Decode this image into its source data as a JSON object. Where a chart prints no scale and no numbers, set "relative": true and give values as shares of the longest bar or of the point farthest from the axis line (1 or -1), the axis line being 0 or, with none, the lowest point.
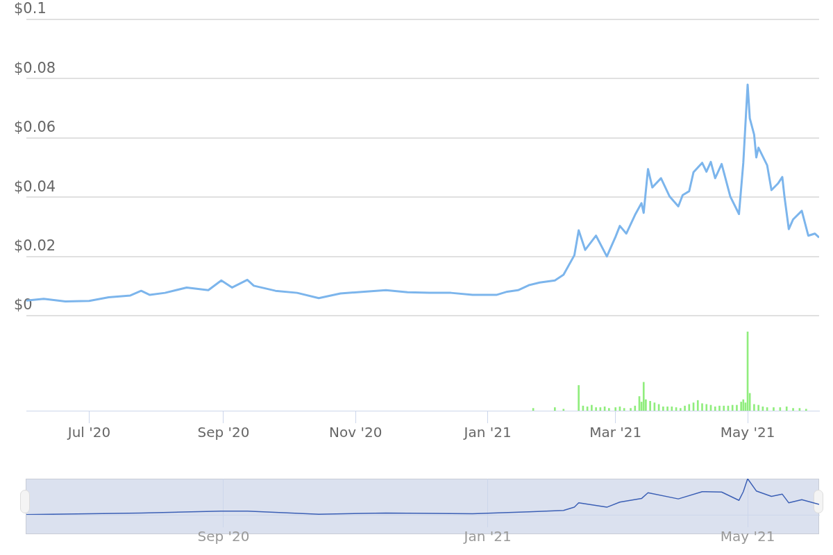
{
  "chart_data": [
    {
      "type": "line",
      "xlim": [
        "2020-06-02",
        "2021-06-03"
      ],
      "ylim": [
        0,
        0.1
      ],
      "yticks": [
        {
          "value": 0,
          "label": "$0"
        },
        {
          "value": 0.02,
          "label": "$0.02"
        },
        {
          "value": 0.04,
          "label": "$0.04"
        },
        {
          "value": 0.06,
          "label": "$0.06"
        },
        {
          "value": 0.08,
          "label": "$0.08"
        },
        {
          "value": 0.1,
          "label": "$0.1"
        }
      ],
      "tick_labels": "y",
      "grid": "y",
      "legend": false,
      "x": [
        "2020-06-02",
        "2020-06-10",
        "2020-06-20",
        "2020-07-01",
        "2020-07-10",
        "2020-07-20",
        "2020-07-25",
        "2020-07-29",
        "2020-08-05",
        "2020-08-15",
        "2020-08-25",
        "2020-08-31",
        "2020-09-05",
        "2020-09-12",
        "2020-09-15",
        "2020-09-25",
        "2020-10-05",
        "2020-10-15",
        "2020-10-25",
        "2020-11-05",
        "2020-11-15",
        "2020-11-25",
        "2020-12-05",
        "2020-12-15",
        "2020-12-25",
        "2021-01-05",
        "2021-01-10",
        "2021-01-15",
        "2021-01-20",
        "2021-01-25",
        "2021-02-01",
        "2021-02-05",
        "2021-02-10",
        "2021-02-12",
        "2021-02-15",
        "2021-02-20",
        "2021-02-25",
        "2021-03-01",
        "2021-03-03",
        "2021-03-06",
        "2021-03-10",
        "2021-03-13",
        "2021-03-14",
        "2021-03-16",
        "2021-03-18",
        "2021-03-22",
        "2021-03-26",
        "2021-03-30",
        "2021-04-01",
        "2021-04-04",
        "2021-04-06",
        "2021-04-10",
        "2021-04-12",
        "2021-04-14",
        "2021-04-16",
        "2021-04-19",
        "2021-04-23",
        "2021-04-27",
        "2021-04-29",
        "2021-05-01",
        "2021-05-02",
        "2021-05-04",
        "2021-05-05",
        "2021-05-06",
        "2021-05-10",
        "2021-05-12",
        "2021-05-15",
        "2021-05-17",
        "2021-05-18",
        "2021-05-20",
        "2021-05-22",
        "2021-05-26",
        "2021-05-29",
        "2021-06-01",
        "2021-06-03"
      ],
      "series": [
        {
          "color": "#7cb5ec",
          "values": [
            0.0051,
            0.0057,
            0.0048,
            0.005,
            0.0062,
            0.0068,
            0.0084,
            0.007,
            0.0077,
            0.0095,
            0.0086,
            0.0119,
            0.0095,
            0.0121,
            0.0101,
            0.0084,
            0.0077,
            0.0059,
            0.0075,
            0.0081,
            0.0086,
            0.0079,
            0.0077,
            0.0077,
            0.007,
            0.007,
            0.0081,
            0.0086,
            0.0103,
            0.0112,
            0.0119,
            0.0138,
            0.0204,
            0.0288,
            0.0222,
            0.027,
            0.02,
            0.0266,
            0.0303,
            0.0277,
            0.034,
            0.038,
            0.0347,
            0.0495,
            0.0433,
            0.0464,
            0.0402,
            0.0369,
            0.0407,
            0.042,
            0.0484,
            0.0516,
            0.0486,
            0.0519,
            0.0464,
            0.0512,
            0.0402,
            0.0343,
            0.0516,
            0.078,
            0.0666,
            0.0611,
            0.0534,
            0.0567,
            0.0508,
            0.0424,
            0.0446,
            0.0468,
            0.0402,
            0.0292,
            0.0325,
            0.0354,
            0.027,
            0.0277,
            0.0264
          ]
        }
      ]
    },
    {
      "type": "bar",
      "relative": true,
      "xlim": [
        "2020-06-02",
        "2021-06-03"
      ],
      "xticks": [
        {
          "value": "2020-07-01",
          "label": "Jul '20"
        },
        {
          "value": "2020-09-01",
          "label": "Sep '20"
        },
        {
          "value": "2020-11-01",
          "label": "Nov '20"
        },
        {
          "value": "2021-01-01",
          "label": "Jan '21"
        },
        {
          "value": "2021-03-01",
          "label": "Mar '21"
        },
        {
          "value": "2021-05-01",
          "label": "May '21"
        }
      ],
      "tick_labels": "x",
      "legend": false,
      "x": [
        "2021-01-22",
        "2021-02-01",
        "2021-02-05",
        "2021-02-12",
        "2021-02-14",
        "2021-02-16",
        "2021-02-18",
        "2021-02-20",
        "2021-02-22",
        "2021-02-24",
        "2021-02-26",
        "2021-03-01",
        "2021-03-03",
        "2021-03-05",
        "2021-03-08",
        "2021-03-10",
        "2021-03-12",
        "2021-03-13",
        "2021-03-14",
        "2021-03-15",
        "2021-03-17",
        "2021-03-19",
        "2021-03-21",
        "2021-03-23",
        "2021-03-25",
        "2021-03-27",
        "2021-03-29",
        "2021-03-31",
        "2021-04-02",
        "2021-04-04",
        "2021-04-06",
        "2021-04-08",
        "2021-04-10",
        "2021-04-12",
        "2021-04-14",
        "2021-04-16",
        "2021-04-18",
        "2021-04-20",
        "2021-04-22",
        "2021-04-24",
        "2021-04-26",
        "2021-04-28",
        "2021-04-29",
        "2021-04-30",
        "2021-05-01",
        "2021-05-02",
        "2021-05-04",
        "2021-05-06",
        "2021-05-08",
        "2021-05-10",
        "2021-05-13",
        "2021-05-16",
        "2021-05-19",
        "2021-05-22",
        "2021-05-25",
        "2021-05-28"
      ],
      "series": [
        {
          "color": "#90ed7d",
          "values": [
            0.03,
            0.04,
            0.02,
            0.32,
            0.06,
            0.05,
            0.07,
            0.04,
            0.04,
            0.05,
            0.03,
            0.04,
            0.05,
            0.03,
            0.03,
            0.06,
            0.18,
            0.11,
            0.36,
            0.14,
            0.12,
            0.1,
            0.08,
            0.05,
            0.05,
            0.05,
            0.04,
            0.03,
            0.06,
            0.08,
            0.1,
            0.13,
            0.09,
            0.08,
            0.07,
            0.05,
            0.06,
            0.06,
            0.06,
            0.07,
            0.07,
            0.11,
            0.14,
            0.1,
            1,
            0.22,
            0.08,
            0.07,
            0.05,
            0.04,
            0.04,
            0.04,
            0.05,
            0.03,
            0.03,
            0.02
          ]
        }
      ]
    },
    {
      "type": "line",
      "relative": true,
      "xlim": [
        "2020-06-02",
        "2021-06-03"
      ],
      "xticks": [
        {
          "value": "2020-09-01",
          "label": "Sep '20"
        },
        {
          "value": "2021-01-01",
          "label": "Jan '21"
        },
        {
          "value": "2021-05-01",
          "label": "May '21"
        }
      ],
      "tick_labels": "x",
      "grid": "x",
      "legend": false,
      "x": [
        "2020-06-02",
        "2020-07-25",
        "2020-08-31",
        "2020-09-12",
        "2020-10-15",
        "2020-11-15",
        "2020-12-25",
        "2021-01-20",
        "2021-02-05",
        "2021-02-10",
        "2021-02-12",
        "2021-02-25",
        "2021-03-03",
        "2021-03-13",
        "2021-03-16",
        "2021-03-30",
        "2021-04-10",
        "2021-04-19",
        "2021-04-27",
        "2021-04-29",
        "2021-05-01",
        "2021-05-05",
        "2021-05-12",
        "2021-05-17",
        "2021-05-20",
        "2021-05-26",
        "2021-06-03"
      ],
      "series": [
        {
          "color": "#3b5fb5",
          "values": [
            0.004,
            0.05,
            0.1,
            0.1,
            0.015,
            0.05,
            0.03,
            0.08,
            0.12,
            0.21,
            0.33,
            0.21,
            0.35,
            0.45,
            0.61,
            0.44,
            0.64,
            0.63,
            0.4,
            0.64,
            1,
            0.66,
            0.51,
            0.57,
            0.33,
            0.42,
            0.29
          ]
        }
      ]
    }
  ]
}
